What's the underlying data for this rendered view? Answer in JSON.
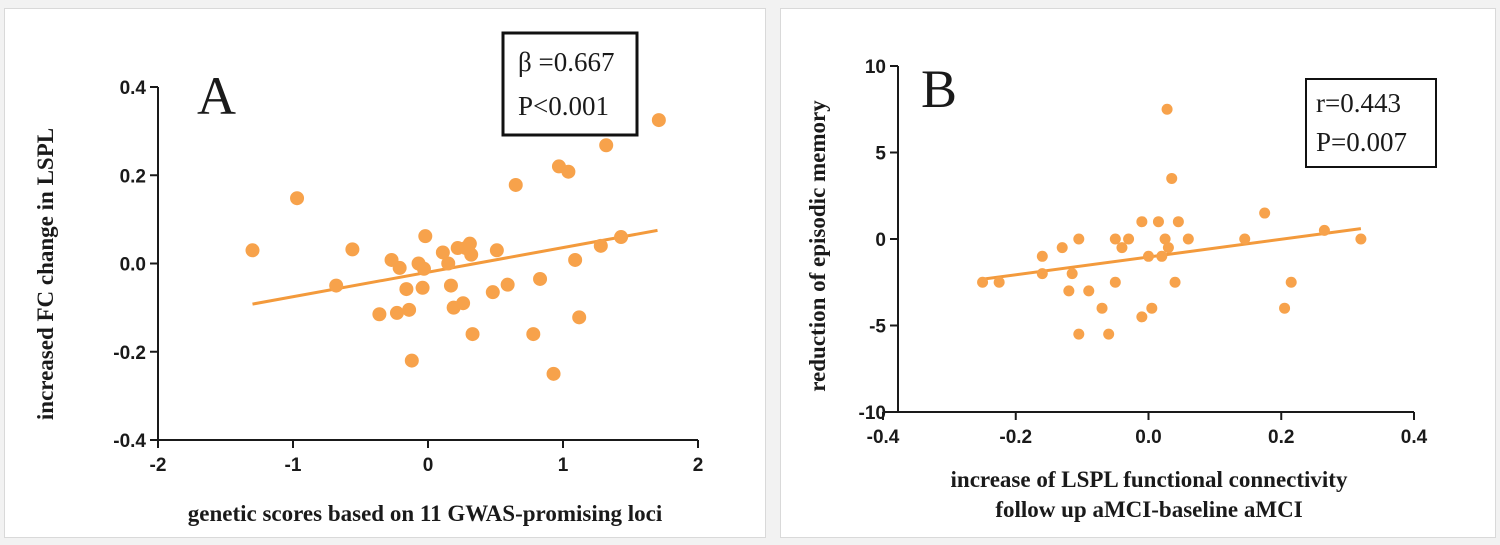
{
  "chart_data": [
    {
      "type": "scatter",
      "panel_label": "A",
      "xlabel": "genetic scores based on 11 GWAS-promising loci",
      "ylabel": "increased FC change in LSPL",
      "xlim": [
        -2,
        2
      ],
      "ylim": [
        -0.4,
        0.4
      ],
      "xticks": [
        -2,
        -1,
        0,
        1,
        2
      ],
      "xtick_labels": [
        "-2",
        "-1",
        "0",
        "1",
        "2"
      ],
      "yticks": [
        -0.4,
        -0.2,
        0.0,
        0.2,
        0.4
      ],
      "ytick_labels": [
        "-0.4",
        "-0.2",
        "0.0",
        "0.2",
        "0.4"
      ],
      "stats": [
        "β =0.667",
        "P<0.001"
      ],
      "fit_line": {
        "x": [
          -1.3,
          1.7
        ],
        "y": [
          -0.092,
          0.075
        ]
      },
      "points": [
        {
          "x": -1.3,
          "y": 0.03
        },
        {
          "x": -0.97,
          "y": 0.148
        },
        {
          "x": -0.68,
          "y": -0.05
        },
        {
          "x": -0.56,
          "y": 0.032
        },
        {
          "x": -0.36,
          "y": -0.115
        },
        {
          "x": -0.27,
          "y": 0.008
        },
        {
          "x": -0.23,
          "y": -0.112
        },
        {
          "x": -0.21,
          "y": -0.01
        },
        {
          "x": -0.16,
          "y": -0.058
        },
        {
          "x": -0.14,
          "y": -0.105
        },
        {
          "x": -0.12,
          "y": -0.22
        },
        {
          "x": -0.07,
          "y": 0.0
        },
        {
          "x": -0.04,
          "y": -0.055
        },
        {
          "x": -0.03,
          "y": -0.012
        },
        {
          "x": -0.02,
          "y": 0.062
        },
        {
          "x": 0.11,
          "y": 0.025
        },
        {
          "x": 0.15,
          "y": 0.0
        },
        {
          "x": 0.17,
          "y": -0.05
        },
        {
          "x": 0.19,
          "y": -0.1
        },
        {
          "x": 0.22,
          "y": 0.035
        },
        {
          "x": 0.26,
          "y": -0.09
        },
        {
          "x": 0.28,
          "y": 0.035
        },
        {
          "x": 0.31,
          "y": 0.045
        },
        {
          "x": 0.32,
          "y": 0.02
        },
        {
          "x": 0.33,
          "y": -0.16
        },
        {
          "x": 0.48,
          "y": -0.065
        },
        {
          "x": 0.51,
          "y": 0.03
        },
        {
          "x": 0.59,
          "y": -0.048
        },
        {
          "x": 0.65,
          "y": 0.178
        },
        {
          "x": 0.78,
          "y": -0.16
        },
        {
          "x": 0.83,
          "y": -0.035
        },
        {
          "x": 0.93,
          "y": -0.25
        },
        {
          "x": 0.97,
          "y": 0.22
        },
        {
          "x": 1.04,
          "y": 0.208
        },
        {
          "x": 1.09,
          "y": 0.008
        },
        {
          "x": 1.12,
          "y": -0.122
        },
        {
          "x": 1.28,
          "y": 0.04
        },
        {
          "x": 1.32,
          "y": 0.268
        },
        {
          "x": 1.43,
          "y": 0.06
        },
        {
          "x": 1.71,
          "y": 0.325
        }
      ]
    },
    {
      "type": "scatter",
      "panel_label": "B",
      "xlabel": "increase of LSPL functional connectivity",
      "xlabel2": "follow up aMCI-baseline aMCI",
      "ylabel": "reduction of episodic memory",
      "xlim": [
        -0.4,
        0.4
      ],
      "ylim": [
        -10,
        10
      ],
      "xticks": [
        -0.4,
        -0.2,
        0.0,
        0.2,
        0.4
      ],
      "xtick_labels": [
        "-0.4",
        "-0.2",
        "0.0",
        "0.2",
        "0.4"
      ],
      "yticks": [
        -10,
        -5,
        0,
        5,
        10
      ],
      "ytick_labels": [
        "-10",
        "-5",
        "0",
        "5",
        "10"
      ],
      "stats": [
        "r=0.443",
        "P=0.007"
      ],
      "fit_line": {
        "x": [
          -0.255,
          0.32
        ],
        "y": [
          -2.35,
          0.6
        ]
      },
      "points": [
        {
          "x": -0.25,
          "y": -2.5
        },
        {
          "x": -0.225,
          "y": -2.5
        },
        {
          "x": -0.16,
          "y": -1.0
        },
        {
          "x": -0.16,
          "y": -2.0
        },
        {
          "x": -0.13,
          "y": -0.5
        },
        {
          "x": -0.12,
          "y": -3.0
        },
        {
          "x": -0.115,
          "y": -2.0
        },
        {
          "x": -0.105,
          "y": 0.0
        },
        {
          "x": -0.105,
          "y": -5.5
        },
        {
          "x": -0.09,
          "y": -3.0
        },
        {
          "x": -0.07,
          "y": -4.0
        },
        {
          "x": -0.06,
          "y": -5.5
        },
        {
          "x": -0.05,
          "y": 0.0
        },
        {
          "x": -0.05,
          "y": -2.5
        },
        {
          "x": -0.04,
          "y": -0.5
        },
        {
          "x": -0.03,
          "y": 0.0
        },
        {
          "x": -0.01,
          "y": 1.0
        },
        {
          "x": -0.01,
          "y": -4.5
        },
        {
          "x": 0.0,
          "y": -1.0
        },
        {
          "x": 0.005,
          "y": -4.0
        },
        {
          "x": 0.015,
          "y": 1.0
        },
        {
          "x": 0.02,
          "y": -1.0
        },
        {
          "x": 0.025,
          "y": 0.0
        },
        {
          "x": 0.028,
          "y": 7.5
        },
        {
          "x": 0.03,
          "y": -0.5
        },
        {
          "x": 0.035,
          "y": 3.5
        },
        {
          "x": 0.04,
          "y": -2.5
        },
        {
          "x": 0.045,
          "y": 1.0
        },
        {
          "x": 0.06,
          "y": 0.0
        },
        {
          "x": 0.145,
          "y": 0.0
        },
        {
          "x": 0.175,
          "y": 1.5
        },
        {
          "x": 0.205,
          "y": -4.0
        },
        {
          "x": 0.215,
          "y": -2.5
        },
        {
          "x": 0.265,
          "y": 0.5
        },
        {
          "x": 0.32,
          "y": 0.0
        }
      ]
    }
  ],
  "colors": {
    "marker": "#f7a24b",
    "fit_line": "#f39a3c",
    "axis": "#1a1a1a"
  }
}
